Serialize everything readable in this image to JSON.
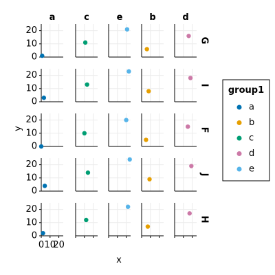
{
  "chart_data": {
    "type": "scatter",
    "title": "",
    "xlabel": "x",
    "ylabel": "y",
    "xlim": [
      0,
      25
    ],
    "ylim": [
      0,
      25
    ],
    "x_ticks": [
      0,
      10,
      20
    ],
    "x_tick_labels": [
      "0",
      "10",
      "20"
    ],
    "y_ticks": [
      0,
      10,
      20
    ],
    "y_tick_labels": [
      "0",
      "10",
      "20"
    ],
    "grid": true,
    "facet_columns": [
      "a",
      "c",
      "e",
      "b",
      "d"
    ],
    "facet_rows": [
      "G",
      "I",
      "F",
      "J",
      "H"
    ],
    "legend": {
      "title": "group1",
      "position": "right",
      "entries": [
        {
          "label": "a",
          "color": "#0072b2"
        },
        {
          "label": "b",
          "color": "#e69f00"
        },
        {
          "label": "c",
          "color": "#009e73"
        },
        {
          "label": "d",
          "color": "#cc79a7"
        },
        {
          "label": "e",
          "color": "#56b4e9"
        }
      ]
    },
    "points": [
      {
        "row": "G",
        "col": "a",
        "group": "a",
        "x": 1,
        "y": 1
      },
      {
        "row": "G",
        "col": "c",
        "group": "c",
        "x": 11,
        "y": 11
      },
      {
        "row": "G",
        "col": "e",
        "group": "e",
        "x": 21,
        "y": 21
      },
      {
        "row": "G",
        "col": "b",
        "group": "b",
        "x": 6,
        "y": 6
      },
      {
        "row": "G",
        "col": "d",
        "group": "d",
        "x": 16,
        "y": 16
      },
      {
        "row": "I",
        "col": "a",
        "group": "a",
        "x": 3,
        "y": 3
      },
      {
        "row": "I",
        "col": "c",
        "group": "c",
        "x": 13,
        "y": 13
      },
      {
        "row": "I",
        "col": "e",
        "group": "e",
        "x": 23,
        "y": 23
      },
      {
        "row": "I",
        "col": "b",
        "group": "b",
        "x": 8,
        "y": 8
      },
      {
        "row": "I",
        "col": "d",
        "group": "d",
        "x": 18,
        "y": 18
      },
      {
        "row": "F",
        "col": "a",
        "group": "a",
        "x": 0,
        "y": 0
      },
      {
        "row": "F",
        "col": "c",
        "group": "c",
        "x": 10,
        "y": 10
      },
      {
        "row": "F",
        "col": "e",
        "group": "e",
        "x": 20,
        "y": 20
      },
      {
        "row": "F",
        "col": "b",
        "group": "b",
        "x": 5,
        "y": 5
      },
      {
        "row": "F",
        "col": "d",
        "group": "d",
        "x": 15,
        "y": 15
      },
      {
        "row": "J",
        "col": "a",
        "group": "a",
        "x": 4,
        "y": 4
      },
      {
        "row": "J",
        "col": "c",
        "group": "c",
        "x": 14,
        "y": 14
      },
      {
        "row": "J",
        "col": "e",
        "group": "e",
        "x": 24,
        "y": 24
      },
      {
        "row": "J",
        "col": "b",
        "group": "b",
        "x": 9,
        "y": 9
      },
      {
        "row": "J",
        "col": "d",
        "group": "d",
        "x": 19,
        "y": 19
      },
      {
        "row": "H",
        "col": "a",
        "group": "a",
        "x": 2,
        "y": 2
      },
      {
        "row": "H",
        "col": "c",
        "group": "c",
        "x": 12,
        "y": 12
      },
      {
        "row": "H",
        "col": "e",
        "group": "e",
        "x": 22,
        "y": 22
      },
      {
        "row": "H",
        "col": "b",
        "group": "b",
        "x": 7,
        "y": 7
      },
      {
        "row": "H",
        "col": "d",
        "group": "d",
        "x": 17,
        "y": 17
      }
    ]
  }
}
